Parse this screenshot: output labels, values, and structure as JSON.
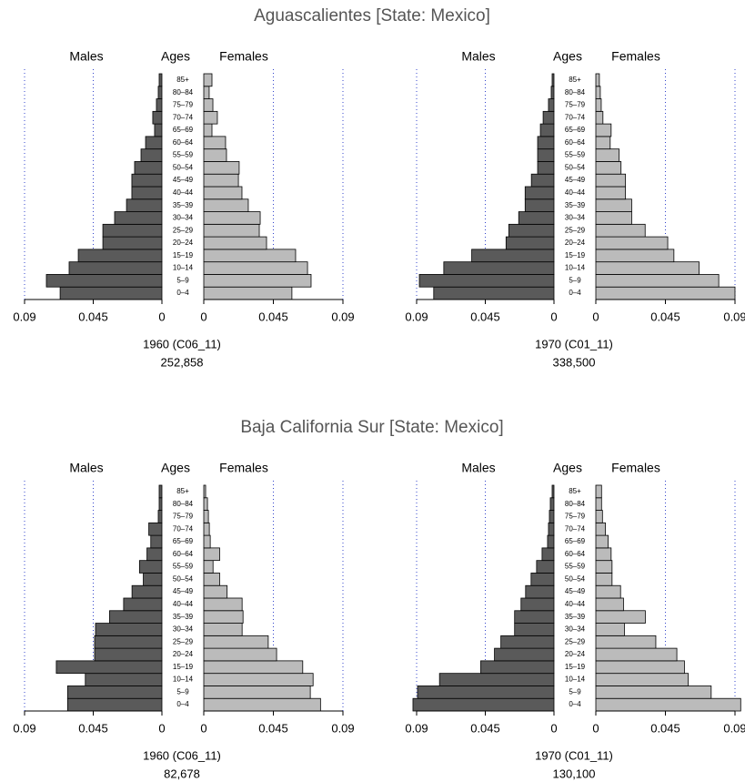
{
  "chart_data": [
    {
      "type": "pyramid",
      "title": "Aguascalientes [State: Mexico]",
      "category_label": "Ages",
      "caption": "1960 (C06_11)",
      "subtitle": "252,858",
      "categories": [
        "0–4",
        "5–9",
        "10–14",
        "15–19",
        "20–24",
        "25–29",
        "30–34",
        "35–39",
        "40–44",
        "45–49",
        "50–54",
        "55–59",
        "60–64",
        "65–69",
        "70–74",
        "75–79",
        "80–84",
        "85+"
      ],
      "series": [
        {
          "name": "Males",
          "color": "#5a5a5a",
          "values": [
            0.0667,
            0.0757,
            0.0608,
            0.0548,
            0.0387,
            0.0387,
            0.031,
            0.0232,
            0.0197,
            0.0197,
            0.0179,
            0.0137,
            0.0107,
            0.0048,
            0.006,
            0.0036,
            0.0024,
            0.0018
          ]
        },
        {
          "name": "Females",
          "color": "#bbbbbb",
          "values": [
            0.057,
            0.0694,
            0.0671,
            0.0594,
            0.0406,
            0.0359,
            0.0365,
            0.0288,
            0.0247,
            0.0224,
            0.0229,
            0.0147,
            0.0141,
            0.0053,
            0.0088,
            0.0059,
            0.0035,
            0.0053
          ]
        }
      ],
      "xlim": [
        0,
        0.09
      ],
      "xticks": [
        0,
        0.045,
        0.09
      ],
      "grid": true
    },
    {
      "type": "pyramid",
      "category_label": "Ages",
      "caption": "1970 (C01_11)",
      "subtitle": "338,500",
      "categories": [
        "0–4",
        "5–9",
        "10–14",
        "15–19",
        "20–24",
        "25–29",
        "30–34",
        "35–39",
        "40–44",
        "45–49",
        "50–54",
        "55–59",
        "60–64",
        "65–69",
        "70–74",
        "75–79",
        "80–84",
        "85+"
      ],
      "series": [
        {
          "name": "Males",
          "color": "#5a5a5a",
          "values": [
            0.0788,
            0.0882,
            0.0722,
            0.0539,
            0.0314,
            0.0296,
            0.0231,
            0.0189,
            0.0189,
            0.0148,
            0.0107,
            0.0107,
            0.0107,
            0.0089,
            0.0071,
            0.0036,
            0.0018,
            0.0012
          ]
        },
        {
          "name": "Females",
          "color": "#bbbbbb",
          "values": [
            0.09,
            0.0795,
            0.0668,
            0.0505,
            0.0465,
            0.0319,
            0.0232,
            0.0232,
            0.0192,
            0.0192,
            0.0163,
            0.0151,
            0.0093,
            0.0099,
            0.0046,
            0.0035,
            0.0029,
            0.0023
          ]
        }
      ],
      "xlim": [
        0,
        0.09
      ],
      "xticks": [
        0,
        0.045,
        0.09
      ],
      "grid": true
    },
    {
      "type": "pyramid",
      "title": "Baja California Sur [State: Mexico]",
      "category_label": "Ages",
      "caption": "1960 (C06_11)",
      "subtitle": "82,678",
      "categories": [
        "0–4",
        "5–9",
        "10–14",
        "15–19",
        "20–24",
        "25–29",
        "30–34",
        "35–39",
        "40–44",
        "45–49",
        "50–54",
        "55–59",
        "60–64",
        "65–69",
        "70–74",
        "75–79",
        "80–84",
        "85+"
      ],
      "series": [
        {
          "name": "Males",
          "color": "#5a5a5a",
          "values": [
            0.0618,
            0.0618,
            0.0502,
            0.0692,
            0.0441,
            0.0441,
            0.0435,
            0.0343,
            0.0251,
            0.0196,
            0.0122,
            0.0147,
            0.0098,
            0.0073,
            0.0086,
            0.0024,
            0.0018,
            0.0018
          ]
        },
        {
          "name": "Females",
          "color": "#bbbbbb",
          "values": [
            0.0755,
            0.0689,
            0.0707,
            0.064,
            0.0471,
            0.0417,
            0.0248,
            0.0254,
            0.0248,
            0.0151,
            0.0103,
            0.006,
            0.0103,
            0.0042,
            0.0036,
            0.003,
            0.0024,
            0.0012
          ]
        }
      ],
      "xlim": [
        0,
        0.09
      ],
      "xticks": [
        0,
        0.045,
        0.09
      ],
      "grid": true
    },
    {
      "type": "pyramid",
      "category_label": "Ages",
      "caption": "1970 (C01_11)",
      "subtitle": "130,100",
      "categories": [
        "0–4",
        "5–9",
        "10–14",
        "15–19",
        "20–24",
        "25–29",
        "30–34",
        "35–39",
        "40–44",
        "45–49",
        "50–54",
        "55–59",
        "60–64",
        "65–69",
        "70–74",
        "75–79",
        "80–84",
        "85+"
      ],
      "series": [
        {
          "name": "Males",
          "color": "#5a5a5a",
          "values": [
            0.0924,
            0.0894,
            0.075,
            0.048,
            0.039,
            0.0348,
            0.0258,
            0.0258,
            0.0216,
            0.0186,
            0.015,
            0.0114,
            0.0078,
            0.0042,
            0.0036,
            0.003,
            0.0024,
            0.0012
          ]
        },
        {
          "name": "Females",
          "color": "#bbbbbb",
          "values": [
            0.0937,
            0.0746,
            0.0598,
            0.0573,
            0.0524,
            0.0388,
            0.0185,
            0.032,
            0.0179,
            0.016,
            0.0105,
            0.0105,
            0.0099,
            0.008,
            0.0062,
            0.0043,
            0.0037,
            0.0037
          ]
        }
      ],
      "xlim": [
        0,
        0.09
      ],
      "xticks": [
        0,
        0.045,
        0.09
      ],
      "grid": true
    }
  ]
}
